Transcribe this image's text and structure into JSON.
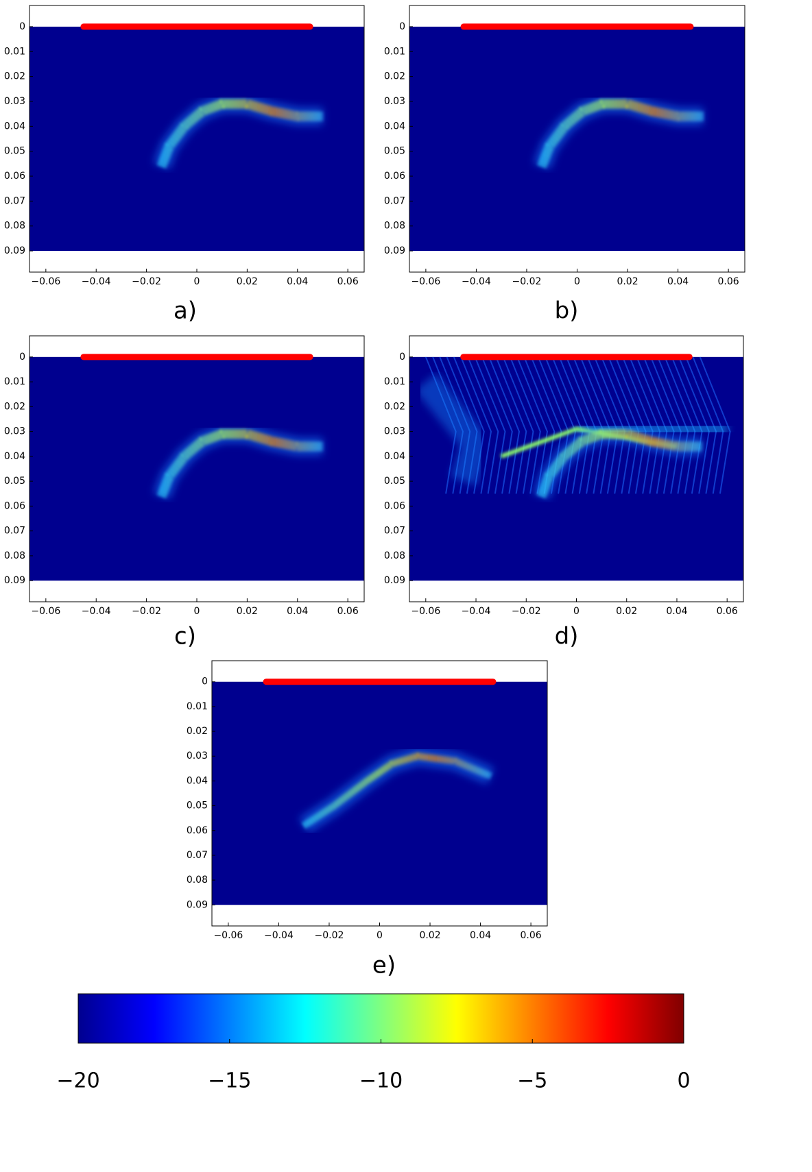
{
  "chart_data": [
    {
      "type": "image",
      "label": "a)",
      "xlim": [
        -0.0665,
        0.0665
      ],
      "ylim": [
        -0.0085,
        0.0985
      ],
      "image_y": [
        0,
        0.09
      ],
      "xticks": [
        {
          "value": -0.06,
          "label": "−0.06"
        },
        {
          "value": -0.04,
          "label": "−0.04"
        },
        {
          "value": -0.02,
          "label": "−0.02"
        },
        0,
        0.02,
        0.04,
        0.06
      ],
      "yticks": [
        0,
        0.01,
        0.02,
        0.03,
        0.04,
        0.05,
        0.06,
        0.07,
        0.08,
        0.09
      ],
      "array": {
        "x": [
          -0.045,
          0.045
        ],
        "y": 0,
        "color": "#ff0000"
      }
    },
    {
      "type": "image",
      "label": "b)",
      "xlim": [
        -0.0665,
        0.0665
      ],
      "ylim": [
        -0.0085,
        0.0985
      ],
      "image_y": [
        0,
        0.09
      ],
      "xticks": [
        {
          "value": -0.06,
          "label": "−0.06"
        },
        {
          "value": -0.04,
          "label": "−0.04"
        },
        {
          "value": -0.02,
          "label": "−0.02"
        },
        0,
        0.02,
        0.04,
        0.06
      ],
      "yticks": [
        0,
        0.01,
        0.02,
        0.03,
        0.04,
        0.05,
        0.06,
        0.07,
        0.08,
        0.09
      ],
      "array": {
        "x": [
          -0.045,
          0.045
        ],
        "y": 0,
        "color": "#ff0000"
      }
    },
    {
      "type": "image",
      "label": "c)",
      "xlim": [
        -0.0665,
        0.0665
      ],
      "ylim": [
        -0.0085,
        0.0985
      ],
      "image_y": [
        0,
        0.09
      ],
      "xticks": [
        {
          "value": -0.06,
          "label": "−0.06"
        },
        {
          "value": -0.04,
          "label": "−0.04"
        },
        {
          "value": -0.02,
          "label": "−0.02"
        },
        0,
        0.02,
        0.04,
        0.06
      ],
      "yticks": [
        0,
        0.01,
        0.02,
        0.03,
        0.04,
        0.05,
        0.06,
        0.07,
        0.08,
        0.09
      ],
      "array": {
        "x": [
          -0.045,
          0.045
        ],
        "y": 0,
        "color": "#ff0000"
      }
    },
    {
      "type": "image",
      "label": "d)",
      "xlim": [
        -0.0665,
        0.0665
      ],
      "ylim": [
        -0.0085,
        0.0985
      ],
      "image_y": [
        0,
        0.09
      ],
      "xticks": [
        {
          "value": -0.06,
          "label": "−0.06"
        },
        {
          "value": -0.04,
          "label": "−0.04"
        },
        {
          "value": -0.02,
          "label": "−0.02"
        },
        0,
        0.02,
        0.04,
        0.06
      ],
      "yticks": [
        0,
        0.01,
        0.02,
        0.03,
        0.04,
        0.05,
        0.06,
        0.07,
        0.08,
        0.09
      ],
      "array": {
        "x": [
          -0.045,
          0.045
        ],
        "y": 0,
        "color": "#ff0000"
      }
    },
    {
      "type": "image",
      "label": "e)",
      "xlim": [
        -0.0665,
        0.0665
      ],
      "ylim": [
        -0.0085,
        0.0985
      ],
      "image_y": [
        0,
        0.09
      ],
      "xticks": [
        {
          "value": -0.06,
          "label": "−0.06"
        },
        {
          "value": -0.04,
          "label": "−0.04"
        },
        {
          "value": -0.02,
          "label": "−0.02"
        },
        0,
        0.02,
        0.04,
        0.06
      ],
      "yticks": [
        0,
        0.01,
        0.02,
        0.03,
        0.04,
        0.05,
        0.06,
        0.07,
        0.08,
        0.09
      ],
      "array": {
        "x": [
          -0.045,
          0.045
        ],
        "y": 0,
        "color": "#ff0000"
      }
    },
    {
      "type": "colorbar",
      "clim": [
        -20,
        0
      ],
      "ticks": [
        {
          "value": -20,
          "label": "−20"
        },
        {
          "value": -15,
          "label": "−15"
        },
        {
          "value": -10,
          "label": "−10"
        },
        {
          "value": -5,
          "label": "−5"
        },
        0
      ]
    }
  ]
}
